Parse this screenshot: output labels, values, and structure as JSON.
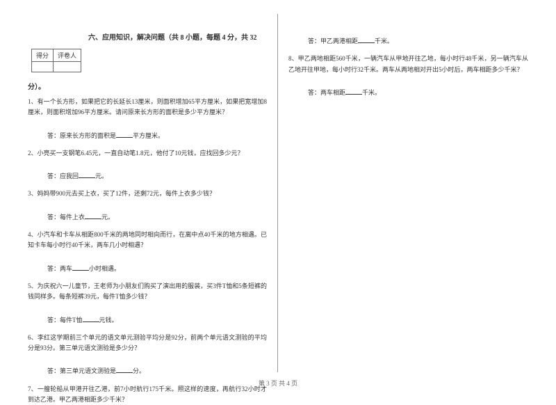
{
  "scoreBox": {
    "label1": "得分",
    "label2": "评卷人"
  },
  "section": {
    "title": "六、应用知识，解决问题（共 8 小题，每题 4 分，共 32",
    "tail": "分）。"
  },
  "q1": {
    "text": "1、有一个长方形，如果把它的长延长13厘米，则面积增加65平方厘米，如果把宽增加8厘米，则面积增加96平方厘米。请问原来长方形的面积是多少平方厘米？"
  },
  "a1": {
    "prefix": "答：原来长方形的面积是",
    "suffix": "平方厘米。"
  },
  "q2": {
    "text": "2、小亮买一支钢笔6.45元，一直自动笔1.8元，他付了10元钱，应找回多少元？"
  },
  "a2": {
    "prefix": "答：应我回",
    "suffix": "元。"
  },
  "q3": {
    "text": "3、妈妈带900元去买上衣，买了12件，还剩72元，每件上衣多少钱？"
  },
  "a3": {
    "prefix": "答：每件上衣",
    "suffix": "元。"
  },
  "q4": {
    "text": "4、小汽车和卡车从相距800千米的两地同时相向而行，在离中点40千米的地方相遇。已知卡车每小时行40千米，两车几小时相遇？"
  },
  "a4": {
    "prefix": "答：两车",
    "suffix": "小时相遇。"
  },
  "q5": {
    "text": "5、为庆祝六一儿童节，王老师为小朋友们购买了演出用的服装，买3件T恤和5条短裤的钱同样多。每条短裤39元，每件T恤多少钱？"
  },
  "a5": {
    "prefix": "答：每件T恤",
    "suffix": "元钱。"
  },
  "q6": {
    "text": "6、李红这学期前三个单元的语文单元测验平均分是92分，前两个单元语文测验的平均分是93分。第三单元语文测验是多少分？"
  },
  "a6": {
    "prefix": "答：第三单元语文测验是",
    "suffix": "分。"
  },
  "q7": {
    "text": "7、一艘轮船从甲港开往乙港，前7小时航行175千米。照这样的速度，再航行32小时才到达乙港。甲乙两港相距多少千米？"
  },
  "a7": {
    "prefix": "答：甲乙两港相距",
    "suffix": "千米。"
  },
  "q8": {
    "text": "8、甲乙两地相距560千米，一辆汽车从甲地开往乙地，每小时行48千米，另一辆汽车从乙地开往甲地，每小时行32千米。两车从两地相对开出5小时后，两车相距多少千米？"
  },
  "a8": {
    "prefix": "答：两车相距",
    "suffix": "千米。"
  },
  "footer": {
    "text": "第 3 页 共 4 页"
  }
}
